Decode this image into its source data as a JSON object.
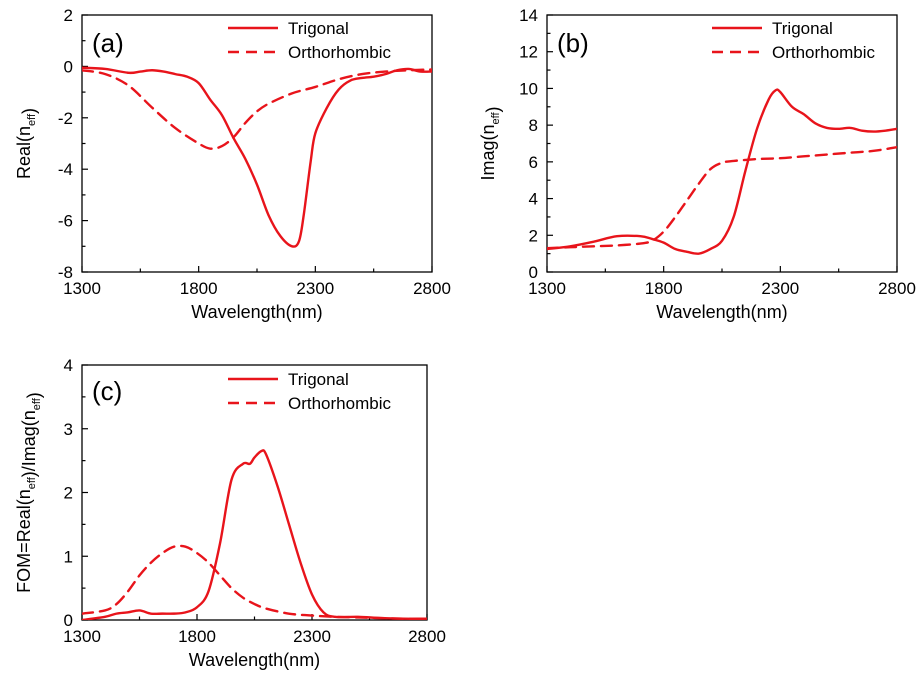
{
  "chart_data": [
    {
      "type": "line",
      "panel_label": "(a)",
      "xlabel": "Wavelength(nm)",
      "ylabel": "Real(n_eff)",
      "ylabel_parts": {
        "main": "Real(n",
        "sub": "eff",
        "close": ")"
      },
      "xlim": [
        1300,
        2800
      ],
      "ylim": [
        -8,
        2
      ],
      "xticks": [
        1300,
        1800,
        2300,
        2800
      ],
      "yticks": [
        -8,
        -6,
        -4,
        -2,
        0,
        2
      ],
      "legend_placement": "top-right",
      "series": [
        {
          "name": "Trigonal",
          "style": "solid",
          "color": "#e8141b",
          "x": [
            1300,
            1400,
            1500,
            1550,
            1600,
            1650,
            1700,
            1750,
            1800,
            1850,
            1900,
            1950,
            2000,
            2050,
            2100,
            2150,
            2200,
            2230,
            2250,
            2280,
            2300,
            2350,
            2400,
            2450,
            2500,
            2550,
            2600,
            2650,
            2700,
            2750,
            2800
          ],
          "y": [
            -0.05,
            -0.1,
            -0.25,
            -0.2,
            -0.15,
            -0.2,
            -0.3,
            -0.4,
            -0.65,
            -1.3,
            -1.9,
            -2.8,
            -3.6,
            -4.6,
            -5.8,
            -6.6,
            -7.0,
            -6.8,
            -5.8,
            -3.7,
            -2.6,
            -1.6,
            -0.9,
            -0.55,
            -0.45,
            -0.4,
            -0.3,
            -0.15,
            -0.1,
            -0.2,
            -0.2
          ]
        },
        {
          "name": "Orthorhombic",
          "style": "dashed",
          "color": "#e8141b",
          "x": [
            1300,
            1400,
            1500,
            1600,
            1700,
            1800,
            1850,
            1900,
            1950,
            2000,
            2050,
            2100,
            2200,
            2300,
            2400,
            2500,
            2600,
            2700,
            2800
          ],
          "y": [
            -0.15,
            -0.3,
            -0.75,
            -1.6,
            -2.4,
            -3.0,
            -3.2,
            -3.1,
            -2.75,
            -2.2,
            -1.75,
            -1.45,
            -1.05,
            -0.8,
            -0.5,
            -0.3,
            -0.2,
            -0.15,
            -0.12
          ]
        }
      ]
    },
    {
      "type": "line",
      "panel_label": "(b)",
      "xlabel": "Wavelength(nm)",
      "ylabel": "Imag(n_eff)",
      "ylabel_parts": {
        "main": "Imag(n",
        "sub": "eff",
        "close": ")"
      },
      "xlim": [
        1300,
        2800
      ],
      "ylim": [
        0,
        14
      ],
      "xticks": [
        1300,
        1800,
        2300,
        2800
      ],
      "yticks": [
        0,
        2,
        4,
        6,
        8,
        10,
        12,
        14
      ],
      "legend_placement": "top-right",
      "series": [
        {
          "name": "Trigonal",
          "style": "solid",
          "color": "#e8141b",
          "x": [
            1300,
            1400,
            1500,
            1600,
            1700,
            1750,
            1800,
            1850,
            1900,
            1950,
            2000,
            2050,
            2100,
            2150,
            2200,
            2250,
            2280,
            2300,
            2350,
            2400,
            2450,
            2500,
            2550,
            2600,
            2650,
            2700,
            2750,
            2800
          ],
          "y": [
            1.25,
            1.4,
            1.65,
            1.95,
            1.95,
            1.8,
            1.6,
            1.25,
            1.1,
            1.0,
            1.25,
            1.7,
            3.0,
            5.5,
            7.8,
            9.4,
            9.9,
            9.8,
            9.0,
            8.6,
            8.1,
            7.85,
            7.8,
            7.85,
            7.7,
            7.65,
            7.7,
            7.8
          ]
        },
        {
          "name": "Orthorhombic",
          "style": "dashed",
          "color": "#e8141b",
          "x": [
            1300,
            1400,
            1500,
            1600,
            1700,
            1750,
            1800,
            1850,
            1900,
            1950,
            2000,
            2050,
            2100,
            2200,
            2300,
            2400,
            2500,
            2600,
            2700,
            2800
          ],
          "y": [
            1.3,
            1.35,
            1.4,
            1.45,
            1.55,
            1.7,
            2.2,
            3.0,
            3.9,
            4.8,
            5.6,
            5.95,
            6.05,
            6.15,
            6.2,
            6.3,
            6.4,
            6.5,
            6.6,
            6.8
          ]
        }
      ]
    },
    {
      "type": "line",
      "panel_label": "(c)",
      "xlabel": "Wavelength(nm)",
      "ylabel": "FOM=Real(n_eff)/Imag(n_eff)",
      "ylabel_parts": {
        "p1": "FOM=Real(n",
        "sub1": "eff",
        "p2": ")/Imag(n",
        "sub2": "eff",
        "p3": ")"
      },
      "xlim": [
        1300,
        2800
      ],
      "ylim": [
        0,
        4
      ],
      "xticks": [
        1300,
        1800,
        2300,
        2800
      ],
      "yticks": [
        0,
        1,
        2,
        3,
        4
      ],
      "legend_placement": "top-center",
      "series": [
        {
          "name": "Trigonal",
          "style": "solid",
          "color": "#e8141b",
          "x": [
            1300,
            1400,
            1450,
            1500,
            1550,
            1600,
            1650,
            1700,
            1750,
            1800,
            1850,
            1900,
            1950,
            2000,
            2030,
            2050,
            2080,
            2100,
            2150,
            2200,
            2250,
            2300,
            2350,
            2400,
            2500,
            2600,
            2700,
            2800
          ],
          "y": [
            0.0,
            0.05,
            0.1,
            0.12,
            0.15,
            0.1,
            0.1,
            0.1,
            0.12,
            0.2,
            0.45,
            1.2,
            2.2,
            2.45,
            2.45,
            2.55,
            2.65,
            2.6,
            2.1,
            1.5,
            0.9,
            0.4,
            0.12,
            0.05,
            0.05,
            0.03,
            0.02,
            0.02
          ]
        },
        {
          "name": "Orthorhombic",
          "style": "dashed",
          "color": "#e8141b",
          "x": [
            1300,
            1400,
            1450,
            1500,
            1550,
            1600,
            1650,
            1700,
            1750,
            1800,
            1850,
            1900,
            1950,
            2000,
            2050,
            2100,
            2200,
            2300,
            2400,
            2500,
            2600,
            2700,
            2800
          ],
          "y": [
            0.1,
            0.15,
            0.25,
            0.45,
            0.7,
            0.9,
            1.05,
            1.15,
            1.15,
            1.05,
            0.9,
            0.7,
            0.5,
            0.35,
            0.25,
            0.18,
            0.1,
            0.07,
            0.05,
            0.04,
            0.03,
            0.02,
            0.02
          ]
        }
      ]
    }
  ]
}
